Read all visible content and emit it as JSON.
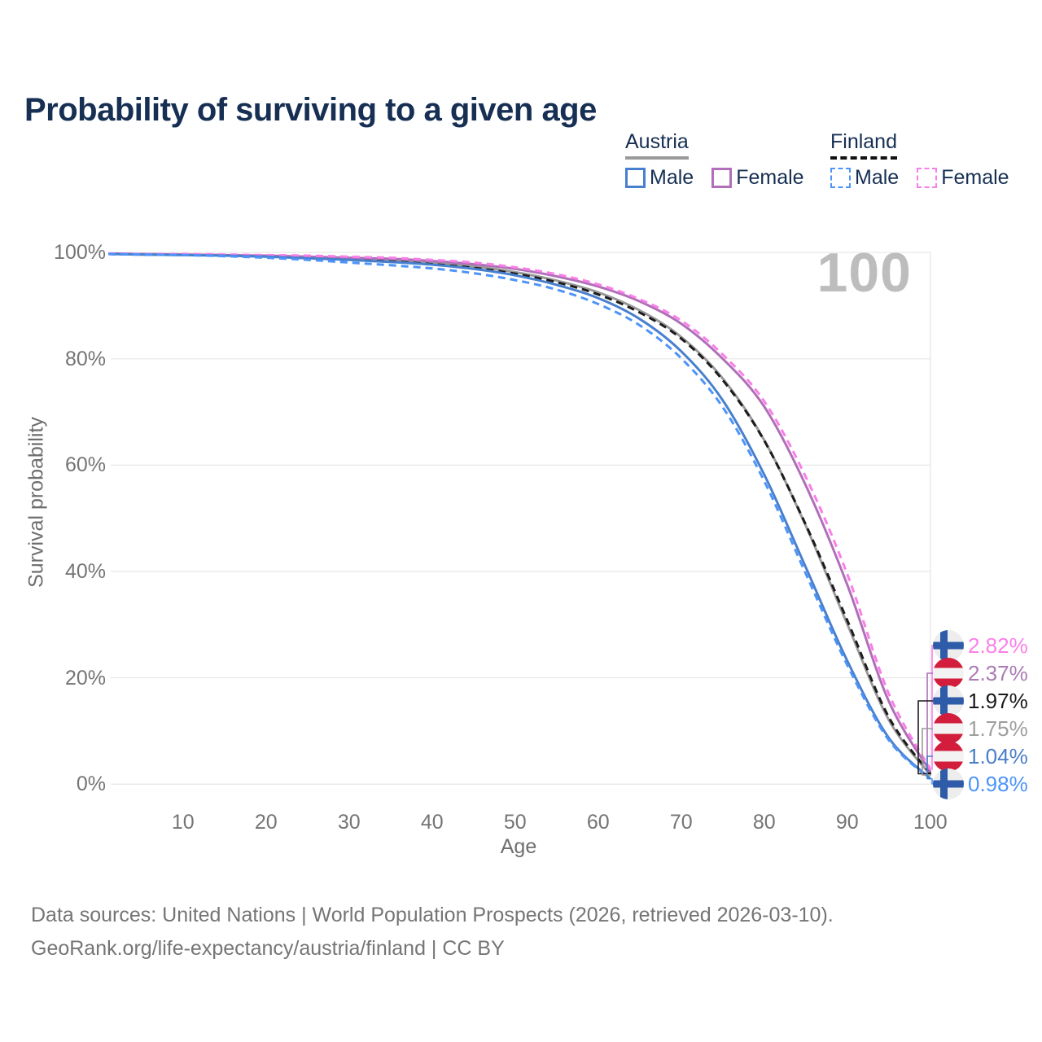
{
  "title": "Probability of surviving to a given age",
  "watermark": "100",
  "legend": {
    "austria": {
      "label": "Austria",
      "male": "Male",
      "female": "Female"
    },
    "finland": {
      "label": "Finland",
      "male": "Male",
      "female": "Female"
    }
  },
  "axes": {
    "y_title": "Survival probability",
    "x_title": "Age",
    "y_ticks": [
      {
        "label": "0%",
        "value": 0
      },
      {
        "label": "20%",
        "value": 20
      },
      {
        "label": "40%",
        "value": 40
      },
      {
        "label": "60%",
        "value": 60
      },
      {
        "label": "80%",
        "value": 80
      },
      {
        "label": "100%",
        "value": 100
      }
    ],
    "x_ticks": [
      {
        "label": "10",
        "value": 10
      },
      {
        "label": "20",
        "value": 20
      },
      {
        "label": "30",
        "value": 30
      },
      {
        "label": "40",
        "value": 40
      },
      {
        "label": "50",
        "value": 50
      },
      {
        "label": "60",
        "value": 60
      },
      {
        "label": "70",
        "value": 70
      },
      {
        "label": "80",
        "value": 80
      },
      {
        "label": "90",
        "value": 90
      },
      {
        "label": "100",
        "value": 100
      }
    ]
  },
  "chart_data": {
    "type": "line",
    "title": "Probability of surviving to a given age",
    "xlabel": "Age",
    "ylabel": "Survival probability",
    "xlim": [
      0,
      100
    ],
    "ylim": [
      0,
      100
    ],
    "grid": true,
    "legend_position": "top-right",
    "highlighted_age": 100,
    "ages": [
      1,
      5,
      10,
      15,
      20,
      25,
      30,
      35,
      40,
      45,
      50,
      55,
      60,
      65,
      70,
      75,
      80,
      85,
      90,
      95,
      100
    ],
    "series": [
      {
        "name": "Finland Female",
        "country": "Finland",
        "sex": "Female",
        "line_style": "dashed",
        "color": "#F97EE7",
        "label_color": "#FB80E8",
        "end_label": "2.82%",
        "end_value_pct": 2.82,
        "values": [
          99.8,
          99.7,
          99.7,
          99.6,
          99.5,
          99.4,
          99.2,
          99.0,
          98.6,
          98.1,
          97.2,
          95.9,
          94.0,
          91.2,
          87.2,
          80.8,
          72.0,
          57.8,
          39.5,
          17.0,
          2.82
        ]
      },
      {
        "name": "Austria Female",
        "country": "Austria",
        "sex": "Female",
        "line_style": "solid",
        "color": "#B06FB8",
        "label_color": "#AB7AB5",
        "end_label": "2.37%",
        "end_value_pct": 2.37,
        "values": [
          99.8,
          99.7,
          99.6,
          99.5,
          99.4,
          99.2,
          99.0,
          98.8,
          98.4,
          97.8,
          96.9,
          95.5,
          93.6,
          90.8,
          86.6,
          80.0,
          71.0,
          56.2,
          37.5,
          15.6,
          2.37
        ]
      },
      {
        "name": "Finland Total",
        "country": "Finland",
        "sex": "Both",
        "line_style": "dashed",
        "color": "#1C1C1C",
        "label_color": "#1A1A1A",
        "end_label": "1.97%",
        "end_value_pct": 1.97,
        "values": [
          99.7,
          99.6,
          99.6,
          99.4,
          99.2,
          99.0,
          98.6,
          98.3,
          97.8,
          97.1,
          96.0,
          94.4,
          92.1,
          88.7,
          83.8,
          76.0,
          64.6,
          48.8,
          30.8,
          12.6,
          1.97
        ]
      },
      {
        "name": "Austria Total",
        "country": "Austria",
        "sex": "Both",
        "line_style": "solid",
        "color": "#999999",
        "label_color": "#9E9E9E",
        "end_label": "1.75%",
        "end_value_pct": 1.75,
        "values": [
          99.7,
          99.7,
          99.6,
          99.5,
          99.3,
          99.1,
          98.8,
          98.5,
          98.1,
          97.4,
          96.3,
          94.7,
          92.5,
          89.1,
          84.1,
          76.3,
          64.7,
          48.6,
          30.1,
          12.1,
          1.75
        ]
      },
      {
        "name": "Austria Male",
        "country": "Austria",
        "sex": "Male",
        "line_style": "solid",
        "color": "#4880CE",
        "label_color": "#4A7EC9",
        "end_label": "1.04%",
        "end_value_pct": 1.04,
        "values": [
          99.7,
          99.6,
          99.5,
          99.4,
          99.2,
          98.9,
          98.6,
          98.2,
          97.7,
          96.9,
          95.7,
          93.9,
          91.4,
          87.5,
          81.4,
          72.2,
          58.2,
          40.8,
          23.2,
          8.7,
          1.04
        ]
      },
      {
        "name": "Finland Male",
        "country": "Finland",
        "sex": "Male",
        "line_style": "dashed",
        "color": "#4D94F9",
        "label_color": "#4D94F9",
        "end_label": "0.98%",
        "end_value_pct": 0.98,
        "values": [
          99.7,
          99.6,
          99.5,
          99.3,
          99.0,
          98.6,
          98.1,
          97.6,
          97.0,
          96.1,
          94.8,
          93.0,
          90.3,
          86.3,
          80.1,
          70.9,
          57.0,
          39.6,
          22.4,
          8.3,
          0.98
        ]
      }
    ]
  },
  "sources": {
    "line1": "Data sources: United Nations | World Population Prospects (2026, retrieved 2026-03-10).",
    "line2": "GeoRank.org/life-expectancy/austria/finland | CC BY"
  },
  "colors": {
    "title_text": "#162F53",
    "austria_male": "#4880CE",
    "austria_female": "#B06FB8",
    "austria_total": "#999999",
    "finland_male": "#4D94F9",
    "finland_female": "#F97EE7",
    "finland_total": "#1C1C1C",
    "austria_underline": "#9A9A9A",
    "finland_underline": "#111111",
    "gridline": "#E8E8E8",
    "tick_text": "#757575",
    "axis_title_text": "#6E6E6E",
    "watermark_text": "#BDBDBD",
    "source_text": "#757575",
    "austria_flag_red": "#D21E3C",
    "austria_flag_white": "#F3F3F3",
    "finland_flag_blue": "#2E5CA8",
    "finland_flag_bg": "#EDEDED"
  }
}
